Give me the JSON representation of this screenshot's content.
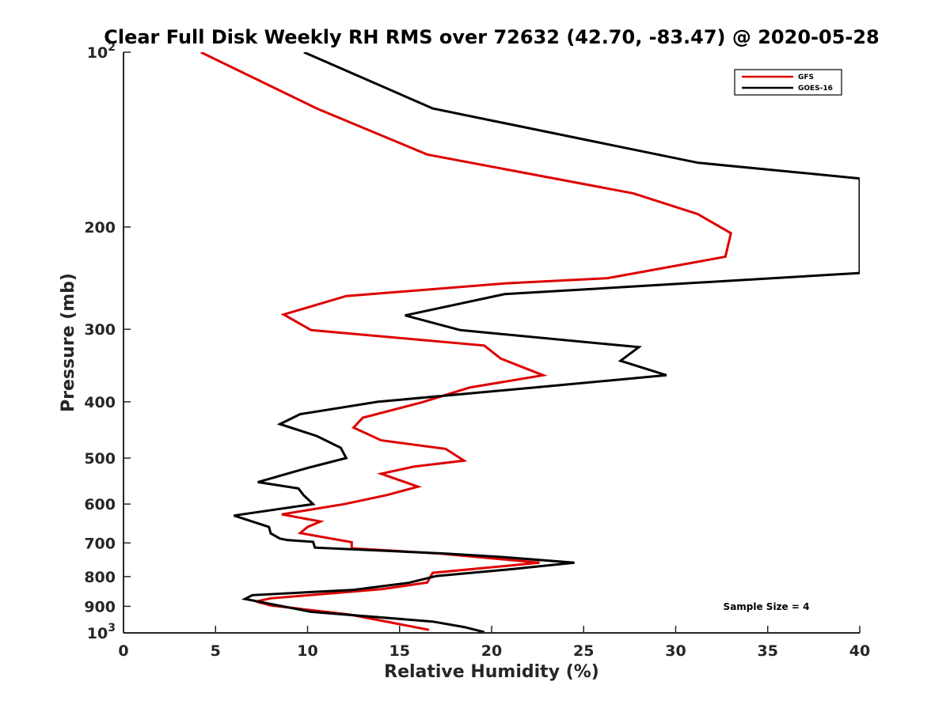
{
  "chart_data": {
    "type": "line",
    "title": "Clear Full Disk Weekly RH RMS over 72632 (42.70, -83.47) @ 2020-05-28",
    "xlabel": "Relative Humidity (%)",
    "ylabel": "Pressure (mb)",
    "xlim": [
      0,
      40
    ],
    "ylim": [
      100,
      1000
    ],
    "yscale": "log",
    "y_reversed": true,
    "grid": false,
    "legend_position": "top-right",
    "x_ticks": [
      0,
      5,
      10,
      15,
      20,
      25,
      30,
      35,
      40
    ],
    "x_tick_labels": [
      "0",
      "5",
      "10",
      "15",
      "20",
      "25",
      "30",
      "35",
      "40"
    ],
    "y_ticks": [
      100,
      200,
      300,
      400,
      500,
      600,
      700,
      800,
      900,
      1000
    ],
    "y_tick_labels": [
      {
        "base": "10",
        "exp": "2"
      },
      {
        "base": "200",
        "exp": ""
      },
      {
        "base": "300",
        "exp": ""
      },
      {
        "base": "400",
        "exp": ""
      },
      {
        "base": "500",
        "exp": ""
      },
      {
        "base": "600",
        "exp": ""
      },
      {
        "base": "700",
        "exp": ""
      },
      {
        "base": "800",
        "exp": ""
      },
      {
        "base": "900",
        "exp": ""
      },
      {
        "base": "10",
        "exp": "3"
      }
    ],
    "annotation": "Sample Size = 4",
    "series": [
      {
        "name": "GFS",
        "color": "#dd0000",
        "points": [
          [
            4.2,
            100
          ],
          [
            10.5,
            125
          ],
          [
            16.5,
            150
          ],
          [
            27.7,
            175
          ],
          [
            31.2,
            190
          ],
          [
            33.0,
            205
          ],
          [
            32.7,
            225
          ],
          [
            26.3,
            245
          ],
          [
            20.8,
            250
          ],
          [
            12.1,
            263
          ],
          [
            8.7,
            283
          ],
          [
            10.2,
            301
          ],
          [
            19.6,
            320
          ],
          [
            20.5,
            337
          ],
          [
            22.8,
            360
          ],
          [
            18.8,
            378
          ],
          [
            16.2,
            401
          ],
          [
            13.0,
            426
          ],
          [
            12.5,
            443
          ],
          [
            14.0,
            466
          ],
          [
            17.5,
            482
          ],
          [
            18.5,
            505
          ],
          [
            15.8,
            517
          ],
          [
            14.0,
            532
          ],
          [
            16.0,
            560
          ],
          [
            14.3,
            579
          ],
          [
            12.0,
            600
          ],
          [
            8.6,
            625
          ],
          [
            10.7,
            643
          ],
          [
            10.0,
            657
          ],
          [
            9.6,
            673
          ],
          [
            12.4,
            698
          ],
          [
            12.4,
            715
          ],
          [
            17.2,
            730
          ],
          [
            22.6,
            757
          ],
          [
            16.8,
            788
          ],
          [
            16.5,
            819
          ],
          [
            14.0,
            841
          ],
          [
            8.0,
            872
          ],
          [
            7.2,
            883
          ],
          [
            8.0,
            897
          ],
          [
            12.3,
            930
          ],
          [
            16.6,
            988
          ]
        ]
      },
      {
        "name": "GOES-16",
        "color": "#000000",
        "points": [
          [
            9.8,
            100
          ],
          [
            16.8,
            125
          ],
          [
            31.2,
            155
          ],
          [
            40.0,
            165
          ],
          [
            40.0,
            240
          ],
          [
            20.7,
            261
          ],
          [
            15.3,
            284
          ],
          [
            18.3,
            301
          ],
          [
            28.0,
            322
          ],
          [
            27.0,
            340
          ],
          [
            29.5,
            360
          ],
          [
            22.3,
            378
          ],
          [
            13.8,
            400
          ],
          [
            9.6,
            420
          ],
          [
            8.5,
            437
          ],
          [
            10.5,
            458
          ],
          [
            11.8,
            480
          ],
          [
            12.1,
            500
          ],
          [
            10.0,
            520
          ],
          [
            7.3,
            550
          ],
          [
            9.5,
            564
          ],
          [
            9.8,
            580
          ],
          [
            10.3,
            600
          ],
          [
            6.0,
            628
          ],
          [
            7.9,
            657
          ],
          [
            8.0,
            674
          ],
          [
            8.5,
            688
          ],
          [
            8.9,
            692
          ],
          [
            10.3,
            697
          ],
          [
            10.4,
            713
          ],
          [
            17.5,
            730
          ],
          [
            20.5,
            740
          ],
          [
            24.5,
            757
          ],
          [
            21.0,
            777
          ],
          [
            17.0,
            798
          ],
          [
            15.5,
            820
          ],
          [
            12.5,
            843
          ],
          [
            7.0,
            861
          ],
          [
            6.6,
            874
          ],
          [
            10.2,
            920
          ],
          [
            16.8,
            956
          ],
          [
            18.5,
            977
          ],
          [
            19.6,
            997
          ]
        ]
      }
    ]
  }
}
